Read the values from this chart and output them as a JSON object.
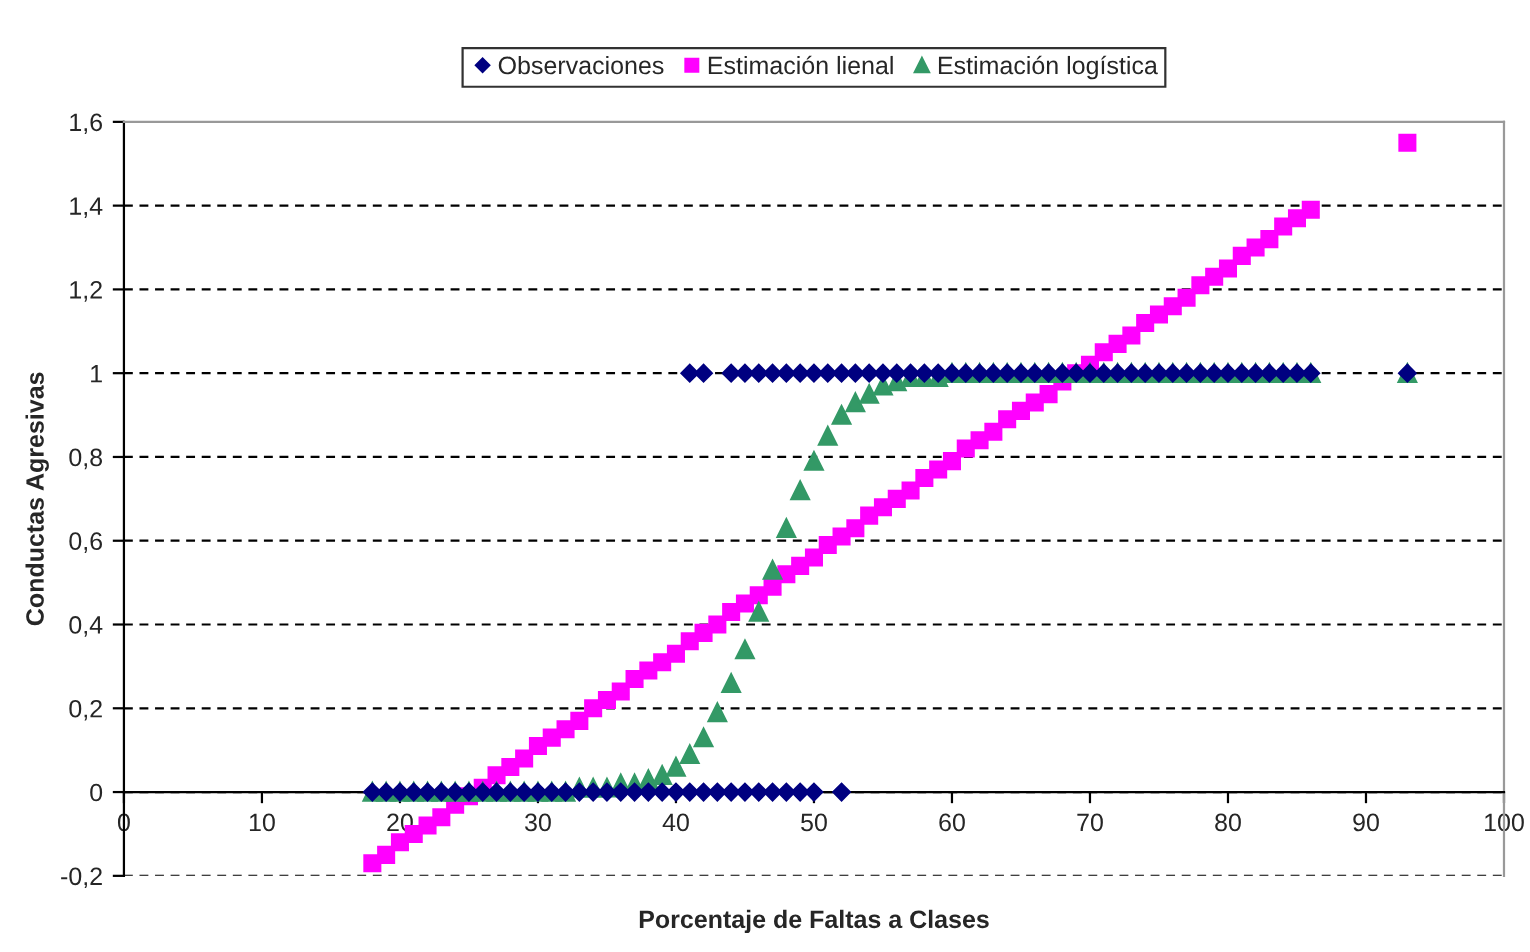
{
  "chart_data": {
    "type": "scatter",
    "xlabel": "Porcentaje de Faltas a Clases",
    "ylabel": "Conductas Agresivas",
    "xlim": [
      0,
      100
    ],
    "xticks": [
      0,
      10,
      20,
      30,
      40,
      50,
      60,
      70,
      80,
      90,
      100
    ],
    "ylim": [
      -0.2,
      1.6
    ],
    "yticks": [
      {
        "value": -0.2,
        "label": "-0,2"
      },
      {
        "value": 0,
        "label": "0"
      },
      {
        "value": 0.2,
        "label": "0,2"
      },
      {
        "value": 0.4,
        "label": "0,4"
      },
      {
        "value": 0.6,
        "label": "0,6"
      },
      {
        "value": 0.8,
        "label": "0,8"
      },
      {
        "value": 1,
        "label": "1"
      },
      {
        "value": 1.2,
        "label": "1,2"
      },
      {
        "value": 1.4,
        "label": "1,4"
      },
      {
        "value": 1.6,
        "label": "1,6"
      }
    ],
    "grid": "y",
    "legend": "top",
    "series": [
      {
        "name": "Observaciones",
        "color": "#000080",
        "marker": "diamond",
        "x": [
          18,
          19,
          20,
          21,
          22,
          23,
          24,
          25,
          26,
          27,
          28,
          29,
          30,
          31,
          32,
          33,
          34,
          35,
          36,
          37,
          38,
          39,
          40,
          41,
          42,
          43,
          44,
          45,
          46,
          47,
          48,
          49,
          50,
          52,
          41,
          42,
          44,
          45,
          46,
          47,
          48,
          49,
          50,
          51,
          52,
          53,
          54,
          55,
          56,
          57,
          58,
          59,
          60,
          61,
          62,
          63,
          64,
          65,
          66,
          67,
          68,
          69,
          70,
          71,
          72,
          73,
          74,
          75,
          76,
          77,
          78,
          79,
          80,
          81,
          82,
          83,
          84,
          85,
          86,
          93
        ],
        "values": [
          0,
          0,
          0,
          0,
          0,
          0,
          0,
          0,
          0,
          0,
          0,
          0,
          0,
          0,
          0,
          0,
          0,
          0,
          0,
          0,
          0,
          0,
          0,
          0,
          0,
          0,
          0,
          0,
          0,
          0,
          0,
          0,
          0,
          0,
          1,
          1,
          1,
          1,
          1,
          1,
          1,
          1,
          1,
          1,
          1,
          1,
          1,
          1,
          1,
          1,
          1,
          1,
          1,
          1,
          1,
          1,
          1,
          1,
          1,
          1,
          1,
          1,
          1,
          1,
          1,
          1,
          1,
          1,
          1,
          1,
          1,
          1,
          1,
          1,
          1,
          1,
          1,
          1,
          1,
          1
        ]
      },
      {
        "name": "Estimación lienal",
        "color": "#ff00ff",
        "marker": "square",
        "x": [
          18,
          19,
          20,
          21,
          22,
          23,
          24,
          25,
          26,
          27,
          28,
          29,
          30,
          31,
          32,
          33,
          34,
          35,
          36,
          37,
          38,
          39,
          40,
          41,
          42,
          43,
          44,
          45,
          46,
          47,
          48,
          49,
          50,
          51,
          52,
          53,
          54,
          55,
          56,
          57,
          58,
          59,
          60,
          61,
          62,
          63,
          64,
          65,
          66,
          67,
          68,
          69,
          70,
          71,
          72,
          73,
          74,
          75,
          76,
          77,
          78,
          79,
          80,
          81,
          82,
          83,
          84,
          85,
          86,
          93
        ],
        "values": [
          -0.17,
          -0.15,
          -0.12,
          -0.1,
          -0.08,
          -0.06,
          -0.03,
          -0.01,
          0.01,
          0.04,
          0.06,
          0.08,
          0.11,
          0.13,
          0.15,
          0.17,
          0.2,
          0.22,
          0.24,
          0.27,
          0.29,
          0.31,
          0.33,
          0.36,
          0.38,
          0.4,
          0.43,
          0.45,
          0.47,
          0.49,
          0.52,
          0.54,
          0.56,
          0.59,
          0.61,
          0.63,
          0.66,
          0.68,
          0.7,
          0.72,
          0.75,
          0.77,
          0.79,
          0.82,
          0.84,
          0.86,
          0.89,
          0.91,
          0.93,
          0.95,
          0.98,
          1.0,
          1.02,
          1.05,
          1.07,
          1.09,
          1.12,
          1.14,
          1.16,
          1.18,
          1.21,
          1.23,
          1.25,
          1.28,
          1.3,
          1.32,
          1.35,
          1.37,
          1.39,
          1.55
        ]
      },
      {
        "name": "Estimación logística",
        "color": "#339966",
        "marker": "triangle",
        "x": [
          18,
          19,
          20,
          21,
          22,
          23,
          24,
          25,
          26,
          27,
          28,
          29,
          30,
          31,
          32,
          33,
          34,
          35,
          36,
          37,
          38,
          39,
          40,
          41,
          42,
          43,
          44,
          45,
          46,
          47,
          48,
          49,
          50,
          51,
          52,
          53,
          54,
          55,
          56,
          57,
          58,
          59,
          60,
          61,
          62,
          63,
          64,
          65,
          66,
          67,
          68,
          69,
          70,
          71,
          72,
          73,
          74,
          75,
          76,
          77,
          78,
          79,
          80,
          81,
          82,
          83,
          84,
          85,
          86,
          93
        ],
        "values": [
          0,
          0,
          0,
          0,
          0,
          0,
          0,
          0,
          0,
          0,
          0,
          0,
          0,
          0,
          0,
          0.01,
          0.01,
          0.01,
          0.02,
          0.02,
          0.03,
          0.04,
          0.06,
          0.09,
          0.13,
          0.19,
          0.26,
          0.34,
          0.43,
          0.53,
          0.63,
          0.72,
          0.79,
          0.85,
          0.9,
          0.93,
          0.95,
          0.97,
          0.98,
          0.99,
          0.99,
          0.99,
          1,
          1,
          1,
          1,
          1,
          1,
          1,
          1,
          1,
          1,
          1,
          1,
          1,
          1,
          1,
          1,
          1,
          1,
          1,
          1,
          1,
          1,
          1,
          1,
          1,
          1,
          1,
          1
        ]
      }
    ]
  }
}
